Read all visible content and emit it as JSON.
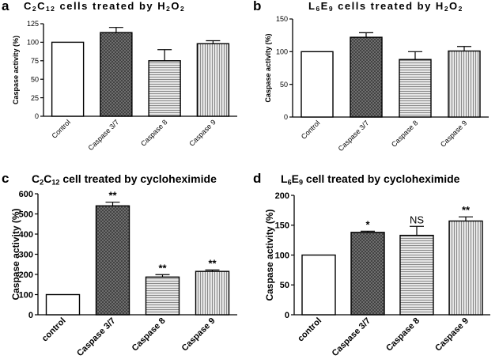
{
  "chart_data": [
    {
      "type": "bar",
      "panel_label": "a",
      "title_parts": [
        "C",
        "2",
        "C",
        "12",
        " cells treated by H",
        "2",
        "O",
        "2"
      ],
      "categories": [
        "Control",
        "Caspase 3/7",
        "Caspase 8",
        "Caspase 9"
      ],
      "values": [
        100,
        113,
        75,
        98
      ],
      "errors": [
        0,
        7,
        15,
        4
      ],
      "annotations": [
        "",
        "",
        "",
        ""
      ],
      "ylabel": "Caspase activity (%)",
      "xlabel": "",
      "ylim": [
        0,
        125
      ],
      "yticks": [
        "0",
        "25",
        "50",
        "75",
        "100",
        "125"
      ],
      "fills": [
        "white",
        "crosshatch",
        "hlines",
        "vlines"
      ]
    },
    {
      "type": "bar",
      "panel_label": "b",
      "title_parts": [
        "L",
        "6",
        "E",
        "9",
        " cells treated by H",
        "2",
        "O",
        "2"
      ],
      "categories": [
        "Control",
        "Caspase 3/7",
        "Caspase 8",
        "Caspase 9"
      ],
      "values": [
        100,
        122,
        88,
        101
      ],
      "errors": [
        0,
        7,
        12,
        7
      ],
      "annotations": [
        "",
        "",
        "",
        ""
      ],
      "ylabel": "Caspase activity (%)",
      "xlabel": "",
      "ylim": [
        0,
        150
      ],
      "yticks": [
        "0",
        "50",
        "100",
        "150"
      ],
      "fills": [
        "white",
        "crosshatch",
        "hlines",
        "vlines"
      ]
    },
    {
      "type": "bar",
      "panel_label": "c",
      "title_parts": [
        "C",
        "2",
        "C",
        "12",
        " cell treated by cycloheximide"
      ],
      "categories": [
        "control",
        "Caspase 3/7",
        "Caspase 8",
        "Caspase 9"
      ],
      "values": [
        100,
        540,
        187,
        215
      ],
      "errors": [
        0,
        18,
        12,
        7
      ],
      "annotations": [
        "",
        "**",
        "**",
        "**"
      ],
      "ylabel": "Caspase activity (%)",
      "xlabel": "",
      "ylim": [
        0,
        600
      ],
      "yticks": [
        "0",
        "100",
        "200",
        "300",
        "400",
        "500",
        "600"
      ],
      "fills": [
        "white",
        "crosshatch",
        "hlines",
        "vlines"
      ]
    },
    {
      "type": "bar",
      "panel_label": "d",
      "title_parts": [
        "L",
        "6",
        "E",
        "9",
        " cell treated by cycloheximide"
      ],
      "categories": [
        "control",
        "Caspase 3/7",
        "Caspase 8",
        "Caspase 9"
      ],
      "values": [
        100,
        138,
        133,
        157
      ],
      "errors": [
        0,
        2,
        15,
        7
      ],
      "annotations": [
        "",
        "*",
        "NS",
        "**"
      ],
      "ylabel": "Caspase activity (%)",
      "xlabel": "",
      "ylim": [
        0,
        200
      ],
      "yticks": [
        "0",
        "50",
        "100",
        "150",
        "200"
      ],
      "fills": [
        "white",
        "crosshatch",
        "hlines",
        "vlines"
      ]
    }
  ]
}
